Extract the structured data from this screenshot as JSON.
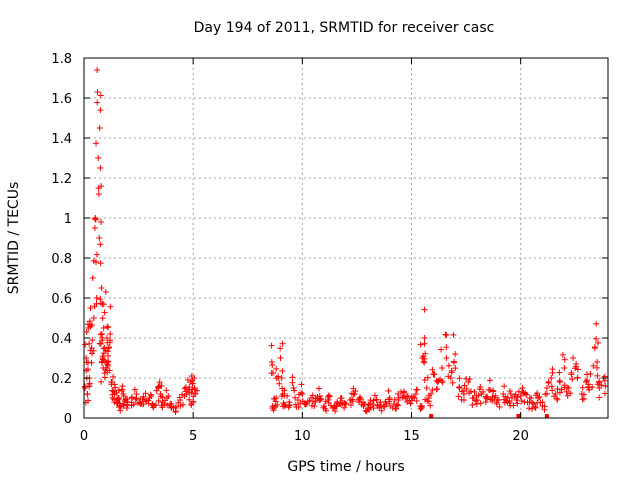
{
  "chart_data": {
    "type": "scatter",
    "title": "Day 194 of 2011, SRMTID for receiver casc",
    "xlabel": "GPS time / hours",
    "ylabel": "SRMTID / TECUs",
    "xlim": [
      0,
      24
    ],
    "ylim": [
      0,
      1.8
    ],
    "xticks": [
      0,
      5,
      10,
      15,
      20
    ],
    "yticks": [
      0,
      0.2,
      0.4,
      0.6,
      0.8,
      1,
      1.2,
      1.4,
      1.6,
      1.8
    ],
    "xtick_labels": [
      "0",
      "5",
      "10",
      "15",
      "20"
    ],
    "ytick_labels": [
      "0",
      "0.2",
      "0.4",
      "0.6",
      "0.8",
      "1",
      "1.2",
      "1.4",
      "1.6",
      "1.8"
    ],
    "grid": true,
    "marker": "+",
    "color": "#ff0000",
    "series": [
      {
        "name": "SRMTID",
        "x": [
          0.05,
          0.1,
          0.15,
          0.2,
          0.25,
          0.3,
          0.35,
          0.4,
          0.45,
          0.5,
          0.52,
          0.55,
          0.58,
          0.6,
          0.62,
          0.65,
          0.68,
          0.7,
          0.72,
          0.75,
          0.78,
          0.8,
          0.82,
          0.85,
          0.88,
          0.9,
          0.95,
          1.0,
          1.05,
          1.1,
          1.15,
          1.2,
          1.25,
          1.3,
          1.4,
          1.5,
          1.6,
          1.7,
          1.8,
          1.9,
          2.0,
          2.2,
          2.4,
          2.6,
          2.8,
          3.0,
          3.2,
          3.4,
          3.5,
          3.6,
          3.8,
          4.0,
          4.2,
          4.4,
          4.6,
          4.8,
          4.9,
          5.0,
          5.05,
          5.1,
          8.6,
          8.7,
          8.8,
          8.9,
          9.0,
          9.1,
          9.2,
          9.4,
          9.6,
          9.8,
          10.0,
          10.2,
          10.4,
          10.6,
          10.8,
          11.0,
          11.2,
          11.4,
          11.6,
          11.8,
          12.0,
          12.2,
          12.4,
          12.6,
          12.8,
          13.0,
          13.2,
          13.4,
          13.6,
          13.8,
          14.0,
          14.2,
          14.4,
          14.6,
          14.8,
          15.0,
          15.2,
          15.4,
          15.5,
          15.6,
          15.7,
          15.8,
          16.0,
          16.2,
          16.4,
          16.6,
          16.8,
          17.0,
          17.2,
          17.4,
          17.6,
          17.8,
          18.0,
          18.2,
          18.4,
          18.6,
          18.8,
          19.0,
          19.2,
          19.4,
          19.6,
          19.8,
          20.0,
          20.2,
          20.4,
          20.6,
          20.8,
          21.0,
          21.2,
          21.4,
          21.6,
          21.8,
          22.0,
          22.2,
          22.4,
          22.6,
          22.8,
          23.0,
          23.2,
          23.4,
          23.5,
          23.6,
          23.8
        ],
        "y": [
          0.15,
          0.3,
          0.12,
          0.45,
          0.2,
          0.55,
          0.35,
          0.7,
          0.5,
          0.95,
          1.0,
          0.78,
          0.6,
          1.74,
          1.63,
          1.3,
          1.12,
          0.9,
          1.45,
          1.25,
          0.98,
          0.65,
          0.42,
          0.3,
          0.25,
          0.45,
          0.35,
          0.63,
          0.4,
          0.28,
          0.35,
          0.42,
          0.18,
          0.1,
          0.12,
          0.08,
          0.1,
          0.06,
          0.12,
          0.09,
          0.08,
          0.1,
          0.12,
          0.07,
          0.09,
          0.1,
          0.06,
          0.15,
          0.12,
          0.08,
          0.1,
          0.07,
          0.05,
          0.09,
          0.11,
          0.14,
          0.18,
          0.08,
          0.2,
          0.12,
          0.28,
          0.05,
          0.1,
          0.2,
          0.3,
          0.12,
          0.06,
          0.08,
          0.15,
          0.09,
          0.12,
          0.07,
          0.1,
          0.08,
          0.11,
          0.06,
          0.09,
          0.05,
          0.08,
          0.1,
          0.07,
          0.09,
          0.12,
          0.08,
          0.06,
          0.05,
          0.07,
          0.09,
          0.06,
          0.08,
          0.1,
          0.07,
          0.09,
          0.11,
          0.08,
          0.1,
          0.12,
          0.06,
          0.3,
          0.4,
          0.15,
          0.1,
          0.22,
          0.18,
          0.25,
          0.3,
          0.2,
          0.32,
          0.15,
          0.12,
          0.18,
          0.1,
          0.09,
          0.12,
          0.08,
          0.14,
          0.1,
          0.09,
          0.12,
          0.08,
          0.1,
          0.09,
          0.11,
          0.12,
          0.08,
          0.07,
          0.1,
          0.06,
          0.15,
          0.2,
          0.12,
          0.18,
          0.25,
          0.15,
          0.3,
          0.2,
          0.12,
          0.18,
          0.22,
          0.35,
          0.28,
          0.15,
          0.2
        ],
        "zero_markers_x": [
          15.9,
          19.9,
          21.2
        ]
      }
    ]
  }
}
